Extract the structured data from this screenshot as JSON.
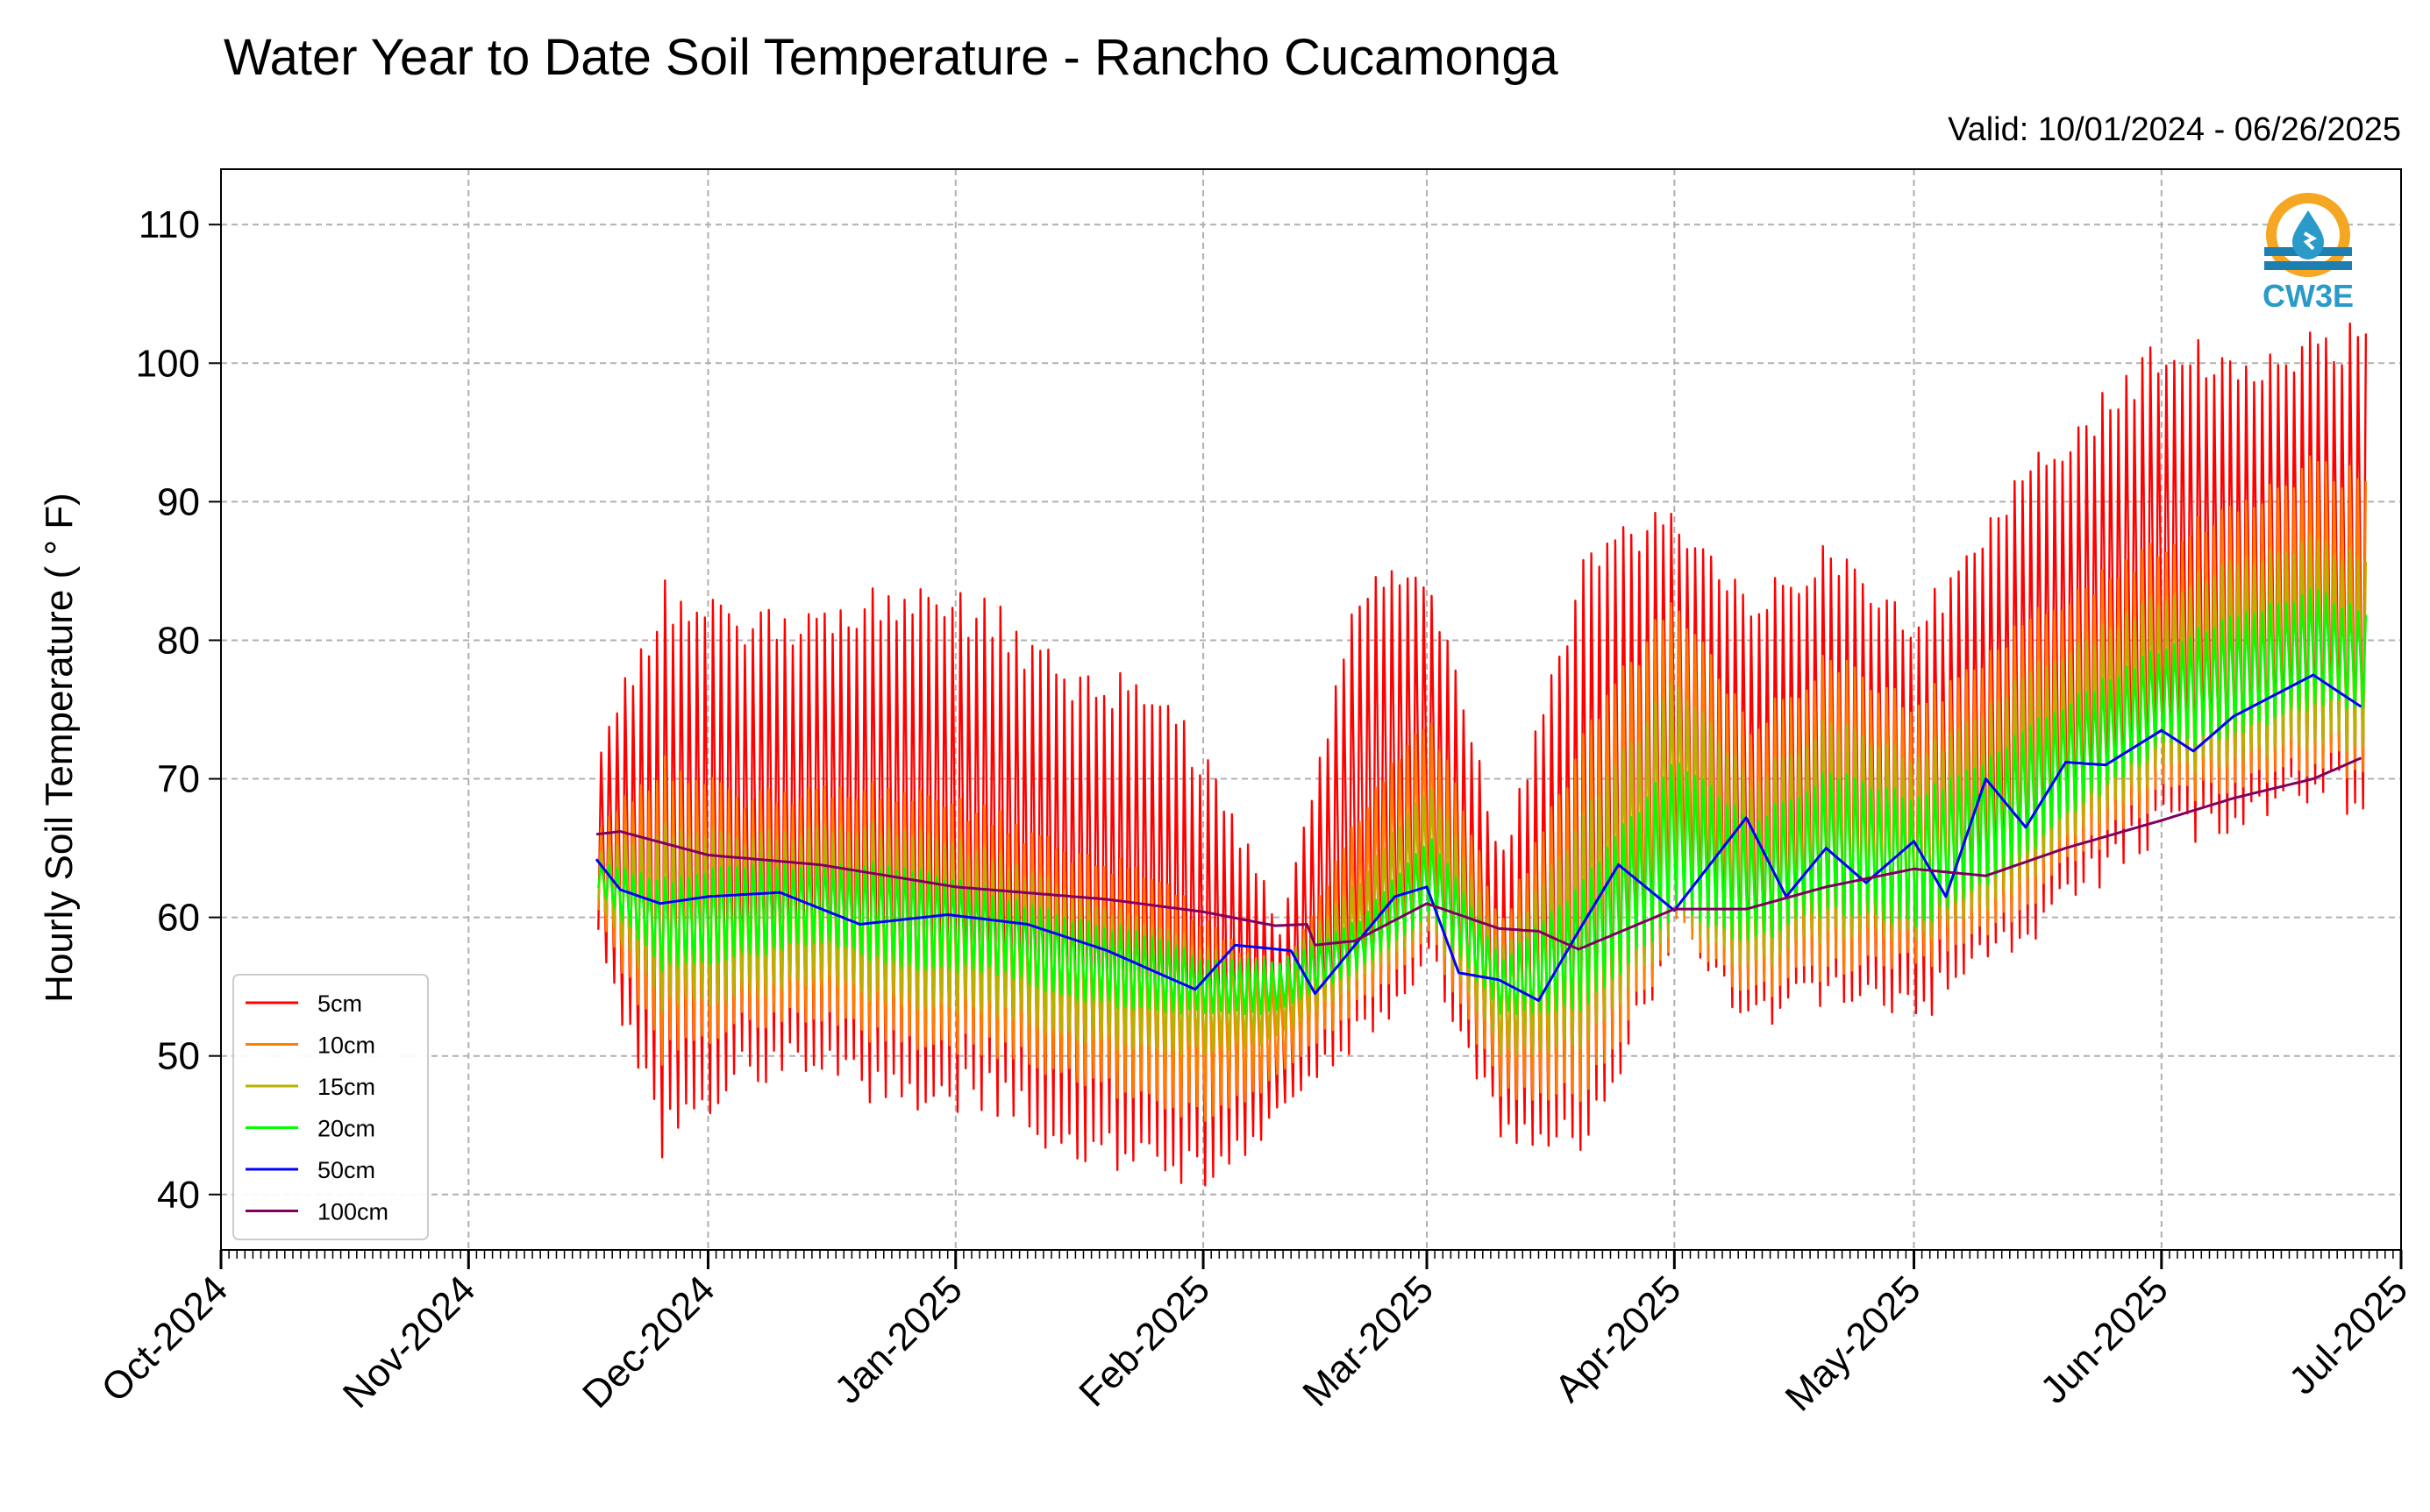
{
  "chart_data": {
    "type": "line",
    "title": "Water Year to Date Soil Temperature - Rancho Cucamonga",
    "subtitle": "Valid: 10/01/2024 - 06/26/2025",
    "xlabel": "",
    "ylabel": "Hourly Soil Temperature ( ° F)",
    "xlim": [
      "2024-10-01",
      "2025-07-01"
    ],
    "ylim": [
      36,
      114
    ],
    "yticks": [
      40,
      50,
      60,
      70,
      80,
      90,
      100,
      110
    ],
    "xticks": [
      {
        "date": "2024-10-01",
        "label": "Oct-2024"
      },
      {
        "date": "2024-11-01",
        "label": "Nov-2024"
      },
      {
        "date": "2024-12-01",
        "label": "Dec-2024"
      },
      {
        "date": "2025-01-01",
        "label": "Jan-2025"
      },
      {
        "date": "2025-02-01",
        "label": "Feb-2025"
      },
      {
        "date": "2025-03-01",
        "label": "Mar-2025"
      },
      {
        "date": "2025-04-01",
        "label": "Apr-2025"
      },
      {
        "date": "2025-05-01",
        "label": "May-2025"
      },
      {
        "date": "2025-06-01",
        "label": "Jun-2025"
      },
      {
        "date": "2025-07-01",
        "label": "Jul-2025"
      }
    ],
    "grid": true,
    "legend_position": "bottom-left",
    "data_start": "2024-11-17",
    "data_end": "2025-06-26",
    "envelope_dates": [
      "2024-11-17",
      "2024-11-25",
      "2024-12-05",
      "2024-12-15",
      "2024-12-25",
      "2025-01-05",
      "2025-01-15",
      "2025-01-25",
      "2025-02-01",
      "2025-02-10",
      "2025-02-20",
      "2025-03-01",
      "2025-03-10",
      "2025-03-20",
      "2025-04-01",
      "2025-04-10",
      "2025-04-20",
      "2025-05-01",
      "2025-05-10",
      "2025-05-20",
      "2025-06-01",
      "2025-06-10",
      "2025-06-20",
      "2025-06-26"
    ],
    "series": [
      {
        "name": "5cm",
        "color": "#ff0000",
        "daily_max": [
          73,
          85,
          82,
          83,
          85,
          83,
          78,
          78,
          72,
          60,
          85,
          85,
          65,
          87,
          90,
          83,
          88,
          82,
          90,
          96,
          103,
          100,
          103,
          103
        ],
        "daily_min": [
          58,
          42,
          48,
          48,
          45,
          46,
          42,
          41,
          40,
          45,
          50,
          56,
          44,
          42,
          58,
          52,
          53,
          52,
          56,
          60,
          65,
          66,
          68,
          67
        ]
      },
      {
        "name": "10cm",
        "color": "#ff8000",
        "daily_max": [
          67,
          72,
          69,
          70,
          70,
          68,
          65,
          64,
          60,
          56,
          68,
          75,
          60,
          74,
          84,
          74,
          80,
          76,
          80,
          84,
          88,
          90,
          94,
          92
        ],
        "daily_min": [
          60,
          49,
          52,
          52,
          50,
          50,
          48,
          46,
          45,
          48,
          53,
          58,
          47,
          46,
          58,
          54,
          55,
          56,
          58,
          63,
          68,
          69,
          70,
          70
        ]
      },
      {
        "name": "15cm",
        "color": "#b4b400",
        "daily_max": [
          65,
          67,
          66,
          67,
          67,
          65,
          62,
          60,
          58,
          57,
          63,
          70,
          58,
          68,
          78,
          70,
          75,
          72,
          76,
          80,
          84,
          86,
          88,
          86
        ],
        "daily_min": [
          61,
          53,
          54,
          55,
          53,
          53,
          51,
          50,
          50,
          51,
          55,
          59,
          50,
          50,
          59,
          56,
          58,
          58,
          60,
          65,
          70,
          71,
          72,
          72
        ]
      },
      {
        "name": "20cm",
        "color": "#00ff00",
        "daily_max": [
          64,
          63,
          64,
          64,
          64,
          62,
          60,
          59,
          57,
          57,
          60,
          66,
          57,
          63,
          72,
          67,
          71,
          69,
          72,
          76,
          80,
          82,
          84,
          82
        ],
        "daily_min": [
          62,
          56,
          57,
          58,
          56,
          56,
          54,
          53,
          53,
          53,
          56,
          60,
          53,
          53,
          60,
          58,
          60,
          59,
          62,
          67,
          72,
          73,
          75,
          75
        ]
      },
      {
        "name": "50cm",
        "color": "#0000ff",
        "dates": [
          "2024-11-17",
          "2024-11-20",
          "2024-11-25",
          "2024-12-01",
          "2024-12-10",
          "2024-12-20",
          "2024-12-31",
          "2025-01-10",
          "2025-01-20",
          "2025-01-31",
          "2025-02-05",
          "2025-02-12",
          "2025-02-15",
          "2025-02-25",
          "2025-03-01",
          "2025-03-05",
          "2025-03-10",
          "2025-03-15",
          "2025-03-20",
          "2025-03-25",
          "2025-04-01",
          "2025-04-10",
          "2025-04-15",
          "2025-04-20",
          "2025-04-25",
          "2025-05-01",
          "2025-05-05",
          "2025-05-10",
          "2025-05-15",
          "2025-05-20",
          "2025-05-25",
          "2025-06-01",
          "2025-06-05",
          "2025-06-10",
          "2025-06-15",
          "2025-06-20",
          "2025-06-26"
        ],
        "values": [
          64.2,
          62.0,
          61.0,
          61.5,
          61.8,
          59.5,
          60.2,
          59.5,
          57.6,
          54.8,
          58.0,
          57.6,
          54.5,
          61.5,
          62.2,
          56.0,
          55.5,
          54.0,
          59.0,
          63.8,
          60.5,
          67.2,
          61.5,
          65.0,
          62.5,
          65.5,
          61.5,
          70.0,
          66.5,
          71.2,
          71.0,
          73.5,
          72.0,
          74.5,
          76.0,
          77.5,
          75.2
        ]
      },
      {
        "name": "100cm",
        "color": "#800060",
        "dates": [
          "2024-11-17",
          "2024-11-20",
          "2024-12-01",
          "2024-12-15",
          "2025-01-01",
          "2025-01-20",
          "2025-02-01",
          "2025-02-10",
          "2025-02-14",
          "2025-02-15",
          "2025-02-20",
          "2025-03-01",
          "2025-03-10",
          "2025-03-15",
          "2025-03-20",
          "2025-04-01",
          "2025-04-10",
          "2025-04-20",
          "2025-05-01",
          "2025-05-10",
          "2025-05-20",
          "2025-06-01",
          "2025-06-10",
          "2025-06-20",
          "2025-06-26"
        ],
        "values": [
          66.0,
          66.2,
          64.5,
          63.8,
          62.2,
          61.3,
          60.4,
          59.4,
          59.5,
          58.0,
          58.3,
          61.0,
          59.2,
          59.0,
          57.7,
          60.6,
          60.6,
          62.2,
          63.5,
          63.0,
          65.0,
          67.0,
          68.6,
          70.0,
          71.5
        ]
      }
    ]
  },
  "logo": {
    "text": "CW3E",
    "color": "#2a9ac8",
    "accent": "#f5a623"
  }
}
